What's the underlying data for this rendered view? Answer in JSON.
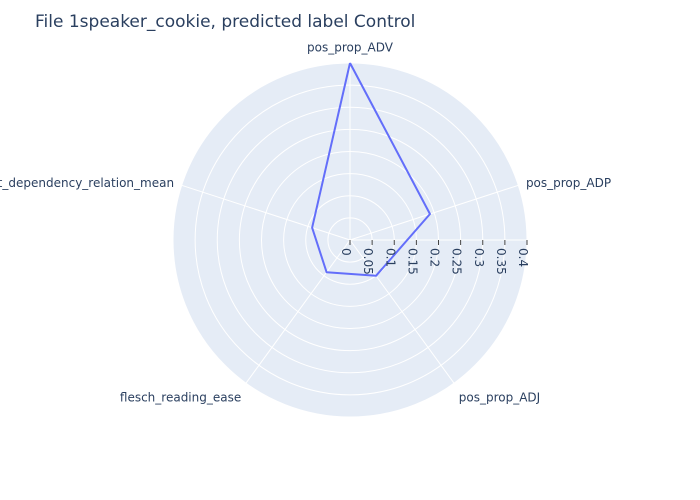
{
  "chart_data": {
    "type": "radar",
    "title": "File 1speaker_cookie, predicted label Control",
    "axes": [
      "pos_prop_ADV",
      "pos_prop_ADP",
      "pos_prop_ADJ",
      "flesch_reading_ease",
      "nt_dependency_relation_mean"
    ],
    "series": [
      {
        "values": [
          0.4,
          0.19,
          0.1,
          0.09,
          0.09
        ]
      }
    ],
    "radial_range": [
      0,
      0.4
    ],
    "radial_ticks": [
      "0",
      "0.05",
      "0.1",
      "0.15",
      "0.2",
      "0.25",
      "0.3",
      "0.35",
      "0.4"
    ],
    "grid": true,
    "colors": {
      "line": "#636efa",
      "polar_bg": "#e5ecf6",
      "grid": "#ffffff",
      "text": "#2a3f5f"
    }
  }
}
